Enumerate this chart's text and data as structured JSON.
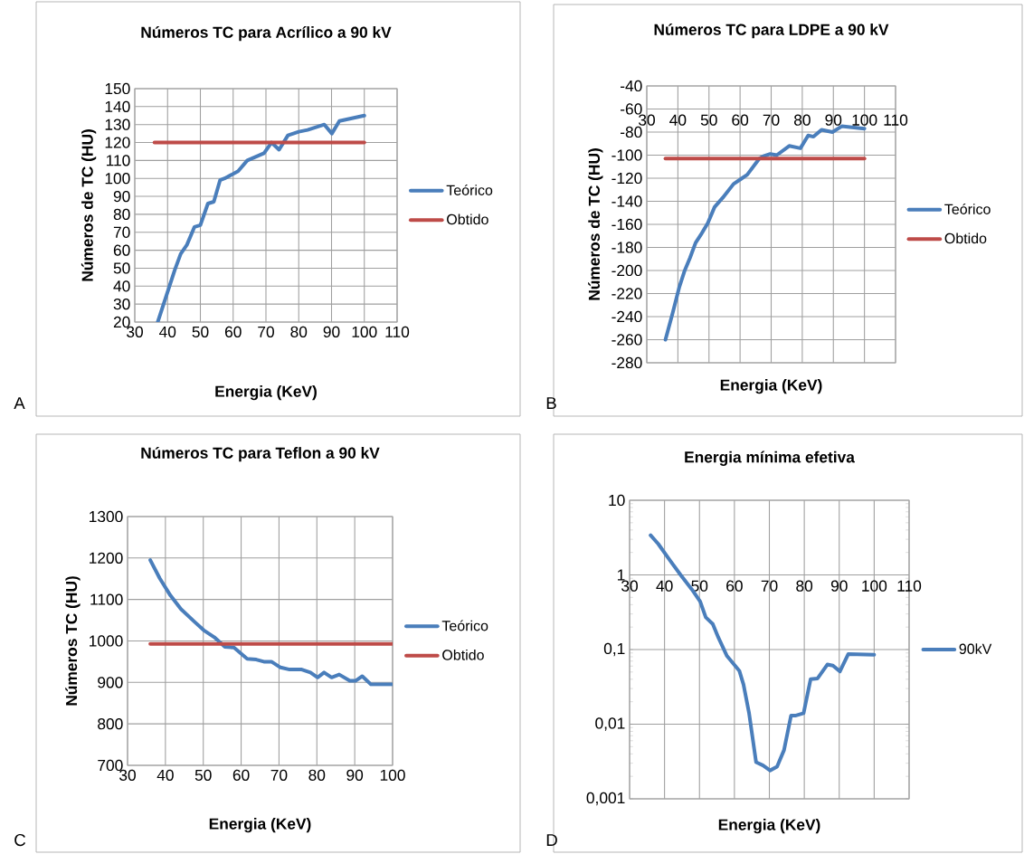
{
  "chart_data": [
    {
      "type": "line",
      "title": "Números TC para Acrílico a 90 kV",
      "xlabel": "Energia (KeV)",
      "ylabel": "Números de TC (HU)",
      "xlim": [
        30,
        110
      ],
      "xticks": [
        30,
        40,
        50,
        60,
        70,
        80,
        90,
        100,
        110
      ],
      "ylim": [
        20,
        150
      ],
      "yticks": [
        20,
        30,
        40,
        50,
        60,
        70,
        80,
        90,
        100,
        110,
        120,
        130,
        140,
        150
      ],
      "grid": true,
      "legend": "right",
      "annotations": [
        "A"
      ],
      "series": [
        {
          "name": "Teórico",
          "color": "#4a7ebb",
          "x": [
            37,
            42.2,
            44,
            45.9,
            48.2,
            50,
            52.3,
            54.1,
            56,
            57.4,
            61.5,
            64.3,
            69.4,
            71.7,
            74,
            76.7,
            80,
            82.7,
            87.8,
            90.1,
            92.4,
            100
          ],
          "values": [
            20,
            49,
            58,
            63,
            73,
            74,
            86,
            87,
            99,
            100,
            104,
            110,
            114,
            120,
            116,
            124,
            126,
            127,
            130,
            125,
            132,
            135
          ]
        },
        {
          "name": "Obtido",
          "color": "#be4b48",
          "x": [
            36,
            100
          ],
          "values": [
            120,
            120
          ]
        }
      ]
    },
    {
      "type": "line",
      "title": "Números TC para LDPE a 90 kV",
      "xlabel": "Energia (KeV)",
      "ylabel": "Números de TC (HU)",
      "xlim": [
        30,
        110
      ],
      "xticks": [
        30,
        40,
        50,
        60,
        70,
        80,
        90,
        100,
        110
      ],
      "ylim": [
        -280,
        -40
      ],
      "yticks": [
        -280,
        -260,
        -240,
        -220,
        -200,
        -180,
        -160,
        -140,
        -120,
        -100,
        -80,
        -60,
        -40
      ],
      "grid": true,
      "legend": "right",
      "annotations": [
        "B"
      ],
      "series": [
        {
          "name": "Teórico",
          "color": "#4a7ebb",
          "x": [
            36,
            38.3,
            40.5,
            42.2,
            43.9,
            45.7,
            47.4,
            49.6,
            51.8,
            54.4,
            57.9,
            60.1,
            62.3,
            66.2,
            67.5,
            69.7,
            71.8,
            75.8,
            79.4,
            81.9,
            83.6,
            86.2,
            89.7,
            92.7,
            100
          ],
          "values": [
            -260,
            -237,
            -214,
            -200,
            -189,
            -176,
            -169,
            -159,
            -145,
            -137,
            -125,
            -121,
            -117,
            -103,
            -101,
            -99,
            -100,
            -92,
            -94,
            -83,
            -84,
            -78,
            -80,
            -75,
            -77
          ]
        },
        {
          "name": "Obtido",
          "color": "#be4b48",
          "x": [
            36,
            100
          ],
          "values": [
            -103,
            -103
          ]
        }
      ]
    },
    {
      "type": "line",
      "title": "Números TC para Teflon a 90 kV",
      "xlabel": "Energia (KeV)",
      "ylabel": "Números TC (HU)",
      "xlim": [
        30,
        100
      ],
      "xticks": [
        30,
        40,
        50,
        60,
        70,
        80,
        90,
        100
      ],
      "ylim": [
        700,
        1300
      ],
      "yticks": [
        700,
        800,
        900,
        1000,
        1100,
        1200,
        1300
      ],
      "grid": true,
      "legend": "right",
      "annotations": [
        "C"
      ],
      "series": [
        {
          "name": "Teórico",
          "color": "#4a7ebb",
          "x": [
            36,
            38.5,
            41.3,
            44.1,
            47.7,
            50.1,
            52.9,
            55.7,
            58.1,
            61.6,
            64,
            66,
            68,
            70.4,
            72.8,
            76,
            78.3,
            80.2,
            81.9,
            83.9,
            85.9,
            88.7,
            90.3,
            92,
            94.3,
            100
          ],
          "values": [
            1195,
            1151,
            1110,
            1077,
            1046,
            1026,
            1009,
            986,
            984,
            957,
            955,
            950,
            950,
            936,
            931,
            931,
            924,
            912,
            924,
            912,
            919,
            904,
            904,
            915,
            895,
            895
          ]
        },
        {
          "name": "Obtido",
          "color": "#be4b48",
          "x": [
            36,
            100
          ],
          "values": [
            993,
            993
          ]
        }
      ]
    },
    {
      "type": "line",
      "title": "Energia mínima efetiva",
      "xlabel": "Energia (KeV)",
      "xlim": [
        30,
        110
      ],
      "xticks": [
        30,
        40,
        50,
        60,
        70,
        80,
        90,
        100,
        110
      ],
      "ylim": [
        0.001,
        10
      ],
      "log": "y",
      "yticks": [
        {
          "value": 0.001,
          "label": "0,001"
        },
        {
          "value": 0.01,
          "label": "0,01"
        },
        {
          "value": 0.1,
          "label": "0,1"
        },
        1,
        10
      ],
      "grid": true,
      "legend": "right",
      "annotations": [
        "D"
      ],
      "series": [
        {
          "name": "90kV",
          "color": "#4a7ebb",
          "x": [
            36,
            38.2,
            41.4,
            44.6,
            47.8,
            50.2,
            51.8,
            53.8,
            55.4,
            57.8,
            61.4,
            62.6,
            64.2,
            66.2,
            68.2,
            70.2,
            72.2,
            74.2,
            76.2,
            77.4,
            79.8,
            81.8,
            83.8,
            86.6,
            88.2,
            90.2,
            92.6,
            100
          ],
          "values": [
            3.4,
            2.6,
            1.6,
            1.0,
            0.64,
            0.44,
            0.27,
            0.22,
            0.145,
            0.083,
            0.052,
            0.034,
            0.014,
            0.0031,
            0.0028,
            0.0024,
            0.0027,
            0.0045,
            0.013,
            0.013,
            0.014,
            0.04,
            0.041,
            0.063,
            0.061,
            0.051,
            0.087,
            0.085
          ]
        }
      ]
    }
  ]
}
